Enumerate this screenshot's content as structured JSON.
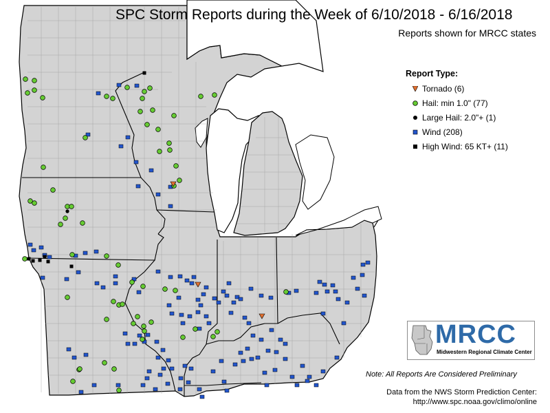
{
  "title": "SPC Storm Reports during the Week of 6/10/2018 - 6/16/2018",
  "subtitle": "Reports shown for MRCC states",
  "legend": {
    "title": "Report Type:",
    "items": [
      {
        "label": "Tornado (6)",
        "symbol": "tornado-icon",
        "color": "#e07030"
      },
      {
        "label": "Hail: min 1.0\" (77)",
        "symbol": "hail-icon",
        "color": "#66cc33"
      },
      {
        "label": "Large Hail: 2.0\"+ (1)",
        "symbol": "large-hail-icon",
        "color": "#000000"
      },
      {
        "label": "Wind (208)",
        "symbol": "wind-icon",
        "color": "#2255cc"
      },
      {
        "label": "High Wind: 65 KT+ (11)",
        "symbol": "high-wind-icon",
        "color": "#000000"
      }
    ]
  },
  "logo": {
    "text": "MRCC",
    "subtitle": "Midwestern Regional Climate Center"
  },
  "note": "Note: All Reports Are Considered Preliminary",
  "source_line1": "Data from the NWS Storm Prediction Center:",
  "source_line2": "http://www.spc.noaa.gov/climo/online",
  "colors": {
    "land": "#d3d3d3",
    "water": "#ffffff",
    "tornado": "#e07030",
    "hail": "#66cc33",
    "wind": "#2255cc",
    "border": "#000000"
  }
}
